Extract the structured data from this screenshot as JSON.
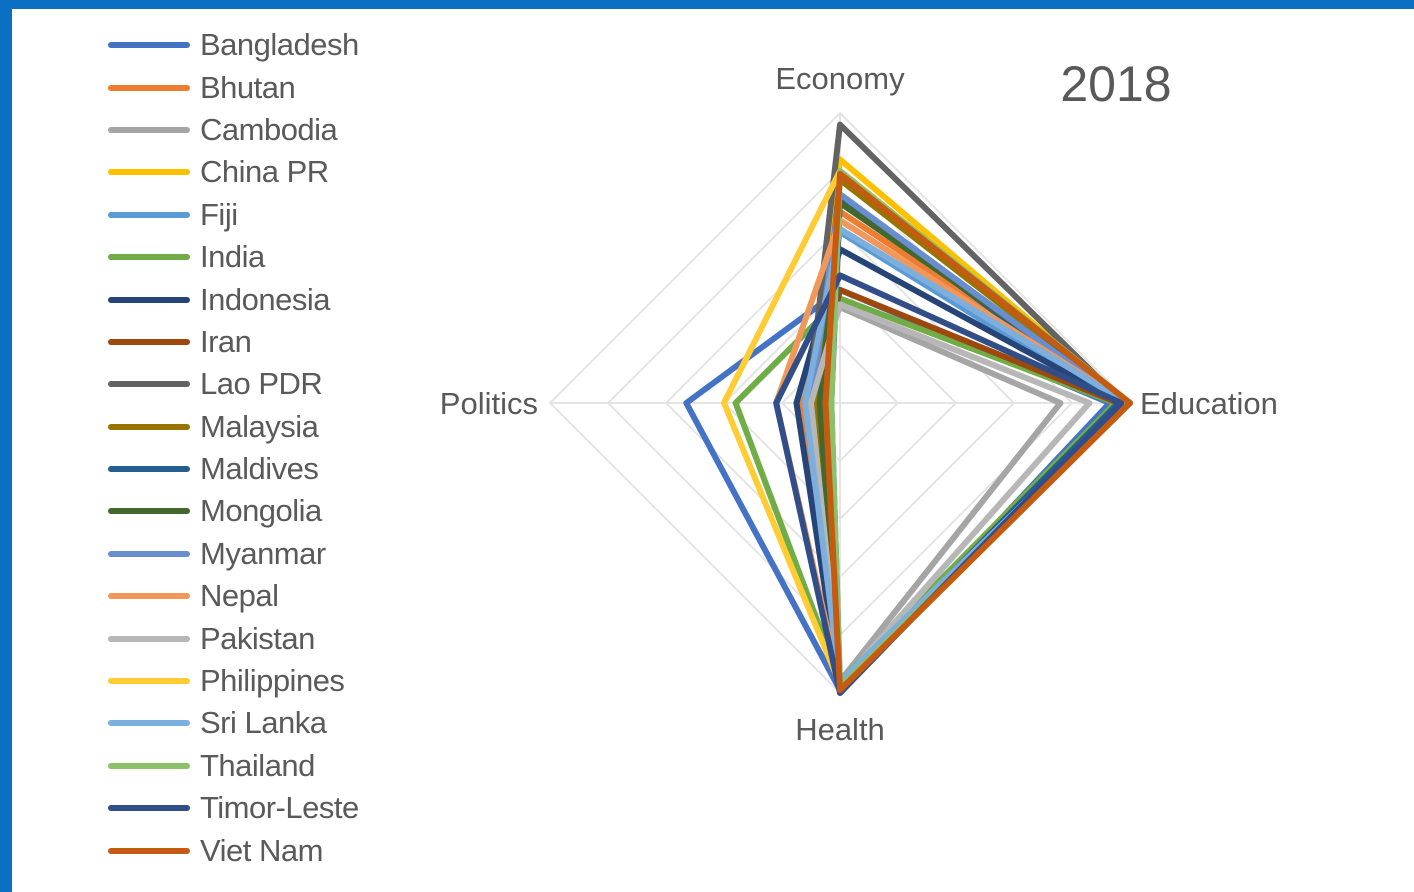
{
  "chart_data": {
    "type": "radar",
    "title": "2018",
    "axes": [
      "Economy",
      "Education",
      "Health",
      "Politics"
    ],
    "range": [
      0,
      1
    ],
    "gridlines": [
      0.2,
      0.4,
      0.6,
      0.8,
      1.0
    ],
    "series": [
      {
        "name": "Bangladesh",
        "color": "#4472c4",
        "values": [
          0.39,
          0.93,
          0.99,
          0.53
        ]
      },
      {
        "name": "Bhutan",
        "color": "#ed7d31",
        "values": [
          0.66,
          1.0,
          0.99,
          0.13
        ]
      },
      {
        "name": "Cambodia",
        "color": "#a5a5a5",
        "values": [
          0.33,
          0.76,
          0.96,
          0.15
        ]
      },
      {
        "name": "China PR",
        "color": "#ffc000",
        "values": [
          0.84,
          0.99,
          0.98,
          0.1
        ]
      },
      {
        "name": "Fiji",
        "color": "#5b9bd5",
        "values": [
          0.59,
          0.95,
          0.98,
          0.12
        ]
      },
      {
        "name": "India",
        "color": "#70ad47",
        "values": [
          0.36,
          0.95,
          0.96,
          0.36
        ]
      },
      {
        "name": "Indonesia",
        "color": "#264478",
        "values": [
          0.53,
          0.97,
          0.98,
          0.15
        ]
      },
      {
        "name": "Iran",
        "color": "#9e480e",
        "values": [
          0.39,
          0.96,
          0.98,
          0.09
        ]
      },
      {
        "name": "Lao PDR",
        "color": "#636363",
        "values": [
          0.96,
          0.98,
          0.98,
          0.11
        ]
      },
      {
        "name": "Malaysia",
        "color": "#997300",
        "values": [
          0.77,
          0.99,
          0.98,
          0.08
        ]
      },
      {
        "name": "Maldives",
        "color": "#255e91",
        "values": [
          0.71,
          0.96,
          0.98,
          0.03
        ]
      },
      {
        "name": "Mongolia",
        "color": "#43682b",
        "values": [
          0.69,
          1.0,
          0.98,
          0.07
        ]
      },
      {
        "name": "Myanmar",
        "color": "#698ed0",
        "values": [
          0.72,
          0.98,
          0.98,
          0.1
        ]
      },
      {
        "name": "Nepal",
        "color": "#f1975a",
        "values": [
          0.63,
          0.99,
          0.97,
          0.22
        ]
      },
      {
        "name": "Pakistan",
        "color": "#b7b7b7",
        "values": [
          0.34,
          0.86,
          0.97,
          0.1
        ]
      },
      {
        "name": "Philippines",
        "color": "#ffcd33",
        "values": [
          0.8,
          1.0,
          0.97,
          0.4
        ]
      },
      {
        "name": "Sri Lanka",
        "color": "#7cafdd",
        "values": [
          0.6,
          0.99,
          0.96,
          0.12
        ]
      },
      {
        "name": "Thailand",
        "color": "#8cc168",
        "values": [
          0.8,
          1.0,
          0.98,
          0.03
        ]
      },
      {
        "name": "Timor-Leste",
        "color": "#314e88",
        "values": [
          0.44,
          0.97,
          1.0,
          0.22
        ]
      },
      {
        "name": "Viet Nam",
        "color": "#c55a11",
        "values": [
          0.79,
          1.0,
          0.99,
          0.05
        ]
      }
    ]
  }
}
